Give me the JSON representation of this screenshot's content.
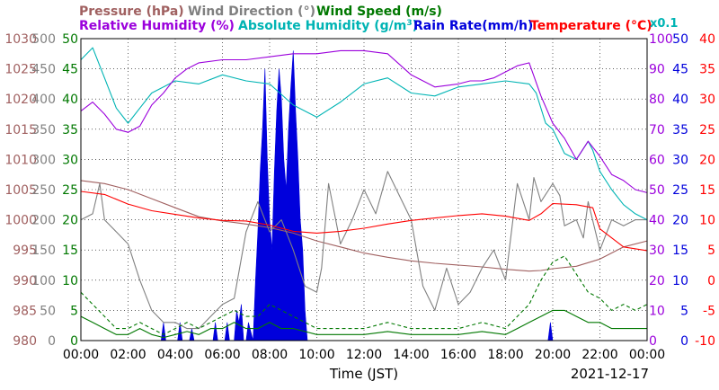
{
  "chart_data": {
    "type": "line",
    "title": "",
    "legend_row1": [
      {
        "label": "Pressure (hPa)",
        "color": "#a06060"
      },
      {
        "label": "Wind Direction (°)",
        "color": "#808080"
      },
      {
        "label": "Wind Speed (m/s)",
        "color": "#007800"
      }
    ],
    "legend_row2": [
      {
        "label": "Relative Humidity (%)",
        "color": "#9b00dc"
      },
      {
        "label": "Absolute Humidity (g/m",
        "color": "#00b4b4"
      },
      {
        "label": "Rain Rate(mm/h)",
        "color": "#0000dc"
      },
      {
        "label": "Temperature (°C)",
        "color": "#ff0000"
      }
    ],
    "abs_hum_superscript": "3",
    "abs_hum_close": ")",
    "abs_hum_scale": "x0.1",
    "xlabel": "Time (JST)",
    "date": "2021-12-17",
    "x_ticks": [
      "00:00",
      "02:00",
      "04:00",
      "06:00",
      "08:00",
      "10:00",
      "12:00",
      "14:00",
      "16:00",
      "18:00",
      "20:00",
      "22:00",
      "00:00"
    ],
    "xlim": [
      0,
      24
    ],
    "grid": true,
    "axes": {
      "pressure": {
        "ylim": [
          980,
          1030
        ],
        "ticks": [
          "980",
          "985",
          "990",
          "995",
          "1000",
          "1005",
          "1010",
          "1015",
          "1020",
          "1025",
          "1030"
        ],
        "color": "#a06060"
      },
      "wind_dir": {
        "ylim": [
          0,
          500
        ],
        "ticks": [
          "0",
          "50",
          "100",
          "150",
          "200",
          "250",
          "300",
          "350",
          "400",
          "450",
          "500"
        ],
        "color": "#808080"
      },
      "wind_speed": {
        "ylim": [
          0,
          50
        ],
        "ticks": [
          "0",
          "5",
          "10",
          "15",
          "20",
          "25",
          "30",
          "35",
          "40",
          "45",
          "50"
        ],
        "color": "#007800"
      },
      "humidity": {
        "ylim": [
          0,
          100
        ],
        "ticks": [
          "0",
          "10",
          "20",
          "30",
          "40",
          "50",
          "60",
          "70",
          "80",
          "90",
          "100"
        ],
        "color": "#9b00dc"
      },
      "rain": {
        "ylim": [
          0,
          50
        ],
        "ticks": [
          "0",
          "5",
          "10",
          "15",
          "20",
          "25",
          "30",
          "35",
          "40",
          "45",
          "50"
        ],
        "color": "#0000dc"
      },
      "temperature": {
        "ylim": [
          -10,
          40
        ],
        "ticks": [
          "-10",
          "-5",
          "0",
          "5",
          "10",
          "15",
          "20",
          "25",
          "30",
          "35",
          "40"
        ],
        "color": "#ff0000"
      }
    },
    "series": [
      {
        "key": "pressure",
        "axis": "pressure",
        "color": "#a06060",
        "x": [
          0,
          1,
          2,
          3,
          4,
          5,
          6,
          7,
          8,
          9,
          10,
          11,
          12,
          13,
          14,
          15,
          16,
          17,
          18,
          19,
          19.5,
          20,
          21,
          22,
          23,
          24
        ],
        "y": [
          1006.5,
          1006,
          1005,
          1003.5,
          1002,
          1000.5,
          999.8,
          999.3,
          998.7,
          997.8,
          996.5,
          995.5,
          994.5,
          993.8,
          993.2,
          992.8,
          992.5,
          992.2,
          991.8,
          991.5,
          991.6,
          991.9,
          992.3,
          993.5,
          995.5,
          996.5
        ]
      },
      {
        "key": "temperature",
        "axis": "temperature",
        "color": "#ff0000",
        "x": [
          0,
          1,
          2,
          3,
          4,
          5,
          6,
          7,
          8,
          9,
          10,
          11,
          12,
          13,
          14,
          15,
          16,
          17,
          18,
          19,
          19.5,
          20,
          21,
          21.7,
          22,
          23,
          24
        ],
        "y": [
          14.7,
          14.2,
          12.6,
          11.5,
          10.9,
          10.3,
          9.9,
          9.8,
          9.1,
          8.1,
          7.8,
          8.1,
          8.6,
          9.3,
          9.9,
          10.3,
          10.7,
          11,
          10.6,
          9.9,
          11,
          12.7,
          12.5,
          12,
          8.5,
          5.5,
          4.9
        ]
      },
      {
        "key": "rel_humidity",
        "axis": "humidity",
        "color": "#9b00dc",
        "x": [
          0,
          0.5,
          1,
          1.5,
          2,
          2.5,
          3,
          3.5,
          4,
          4.5,
          5,
          6,
          7,
          8,
          9,
          10,
          11,
          12,
          13,
          14,
          15,
          16,
          16.5,
          17,
          17.5,
          18,
          18.5,
          19,
          19.5,
          20,
          20.5,
          21,
          21.5,
          22,
          22.5,
          23,
          23.5,
          24
        ],
        "y": [
          76,
          79,
          75,
          70,
          69,
          71,
          78,
          82,
          87,
          90,
          92,
          93,
          93,
          94,
          95,
          95,
          96,
          96,
          95,
          88,
          84,
          85,
          86,
          86,
          87,
          89,
          91,
          92,
          81,
          72,
          67,
          60,
          66,
          61,
          55,
          53,
          50,
          49
        ]
      },
      {
        "key": "abs_humidity",
        "axis": "humidity",
        "color": "#00b4b4",
        "x": [
          0,
          0.5,
          1,
          1.5,
          2,
          2.5,
          3,
          3.5,
          4,
          5,
          6,
          7,
          8,
          9,
          10,
          11,
          12,
          13,
          14,
          15,
          16,
          17,
          18,
          19,
          19.3,
          19.7,
          20,
          20.5,
          21,
          21.5,
          21.7,
          22,
          22.5,
          23,
          23.5,
          24
        ],
        "y": [
          93,
          97,
          87,
          77,
          72,
          77,
          82,
          84,
          86,
          85,
          88,
          86,
          85,
          78,
          74,
          79,
          85,
          87,
          82,
          81,
          84,
          85,
          86,
          85,
          82,
          72,
          70,
          62,
          60,
          66,
          63,
          56,
          50,
          45,
          42,
          40
        ]
      },
      {
        "key": "wind_direction",
        "axis": "wind_dir",
        "color": "#808080",
        "x": [
          0,
          0.5,
          0.8,
          1,
          1.5,
          2,
          2.5,
          3,
          3.5,
          4,
          4.5,
          5,
          5.5,
          6,
          6.5,
          7,
          7.5,
          8,
          8.5,
          9,
          9.5,
          10,
          10.2,
          10.5,
          11,
          11.5,
          12,
          12.5,
          13,
          13.5,
          14,
          14.5,
          15,
          15.5,
          16,
          16.5,
          17,
          17.5,
          18,
          18.5,
          19,
          19.2,
          19.5,
          20,
          20.3,
          20.5,
          21,
          21.3,
          21.5,
          22,
          22.5,
          23,
          23.5,
          24
        ],
        "y": [
          200,
          210,
          260,
          200,
          180,
          160,
          100,
          50,
          30,
          30,
          20,
          20,
          40,
          60,
          70,
          180,
          230,
          180,
          200,
          150,
          90,
          80,
          120,
          260,
          160,
          200,
          250,
          210,
          280,
          240,
          200,
          90,
          50,
          120,
          60,
          80,
          120,
          150,
          100,
          260,
          200,
          270,
          230,
          260,
          240,
          190,
          200,
          170,
          230,
          150,
          200,
          190,
          200,
          200
        ]
      },
      {
        "key": "wind_speed",
        "axis": "wind_speed",
        "color": "#007800",
        "x": [
          0,
          0.5,
          1,
          1.5,
          2,
          2.5,
          3,
          3.5,
          4,
          4.5,
          5,
          5.5,
          6,
          6.5,
          7,
          7.5,
          8,
          8.5,
          9,
          9.5,
          10,
          11,
          12,
          13,
          14,
          15,
          16,
          17,
          18,
          18.5,
          19,
          19.5,
          20,
          20.5,
          21,
          21.5,
          22,
          22.5,
          23,
          23.5,
          24
        ],
        "y": [
          4,
          3,
          2,
          1,
          1,
          2,
          1,
          0.5,
          1,
          1.5,
          1,
          2,
          2,
          3,
          2,
          2,
          3,
          2,
          2,
          1.5,
          1,
          1,
          1,
          1.5,
          1,
          1,
          1,
          1.5,
          1,
          2,
          3,
          4,
          5,
          5,
          4,
          3,
          3,
          2,
          2,
          2,
          2
        ]
      },
      {
        "key": "wind_gust",
        "axis": "wind_speed",
        "color": "#007800",
        "dashed": true,
        "x": [
          0,
          0.5,
          1,
          1.5,
          2,
          2.5,
          3,
          3.5,
          4,
          4.5,
          5,
          5.5,
          6,
          6.5,
          7,
          7.5,
          8,
          8.5,
          9,
          9.5,
          10,
          11,
          12,
          13,
          14,
          15,
          16,
          17,
          18,
          18.5,
          19,
          19.5,
          20,
          20.5,
          21,
          21.5,
          22,
          22.5,
          23,
          23.5,
          24
        ],
        "y": [
          8,
          6,
          4,
          2,
          2,
          3,
          2,
          1,
          2,
          3,
          2,
          3,
          4,
          5,
          4,
          4,
          6,
          5,
          4,
          3,
          2,
          2,
          2,
          3,
          2,
          2,
          2,
          3,
          2,
          4,
          6,
          10,
          13,
          14,
          11,
          8,
          7,
          5,
          6,
          5,
          6
        ]
      },
      {
        "key": "rain_rate",
        "axis": "rain",
        "color": "#0000dc",
        "fill": true,
        "x": [
          3.4,
          3.5,
          3.6,
          4.1,
          4.2,
          4.3,
          4.6,
          4.7,
          4.8,
          5.6,
          5.7,
          5.8,
          6.1,
          6.2,
          6.3,
          6.5,
          6.6,
          6.7,
          6.8,
          6.9,
          7.0,
          7.1,
          7.3,
          7.4,
          7.5,
          7.6,
          7.7,
          7.8,
          7.9,
          8.0,
          8.1,
          8.2,
          8.3,
          8.4,
          8.5,
          8.6,
          8.7,
          8.8,
          8.9,
          9.0,
          9.1,
          9.2,
          9.3,
          9.4,
          9.5,
          9.6,
          19.8,
          19.9,
          20.0
        ],
        "y": [
          0,
          3,
          0,
          0,
          3,
          0,
          0,
          2,
          0,
          0,
          3,
          0,
          0,
          3,
          0,
          0,
          5,
          3,
          6,
          0,
          0,
          3,
          0,
          10,
          18,
          28,
          35,
          45,
          30,
          20,
          15,
          28,
          38,
          45,
          40,
          30,
          25,
          35,
          42,
          48,
          38,
          30,
          20,
          15,
          5,
          0,
          0,
          3,
          0
        ]
      }
    ]
  }
}
